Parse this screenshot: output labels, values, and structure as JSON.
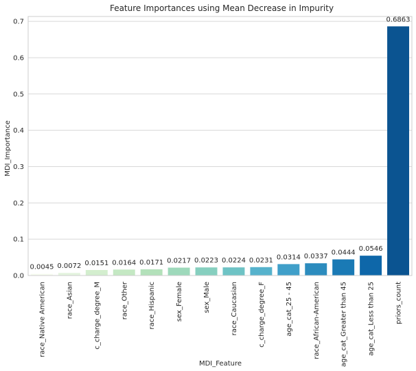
{
  "chart_data": {
    "type": "bar",
    "title": "Feature Importances using Mean Decrease in Impurity",
    "xlabel": "MDI_Feature",
    "ylabel": "MDI_Importance",
    "ylim": [
      0,
      0.7
    ],
    "yticks": [
      "0.0",
      "0.1",
      "0.2",
      "0.3",
      "0.4",
      "0.5",
      "0.6",
      "0.7"
    ],
    "grid": true,
    "categories": [
      "race_Native American",
      "race_Asian",
      "c_charge_degree_M",
      "race_Other",
      "race_Hispanic",
      "sex_Female",
      "sex_Male",
      "race_Caucasian",
      "c_charge_degree_F",
      "age_cat_25 - 45",
      "race_African-American",
      "age_cat_Greater than 45",
      "age_cat_Less than 25",
      "priors_count"
    ],
    "values": [
      0.0045,
      0.0072,
      0.0151,
      0.0164,
      0.0171,
      0.0217,
      0.0223,
      0.0224,
      0.0231,
      0.0314,
      0.0337,
      0.0444,
      0.0546,
      0.6863
    ],
    "value_labels": [
      "0.0045",
      "0.0072",
      "0.0151",
      "0.0164",
      "0.0171",
      "0.0217",
      "0.0223",
      "0.0224",
      "0.0231",
      "0.0314",
      "0.0337",
      "0.0444",
      "0.0546",
      "0.6863"
    ],
    "colors": [
      "#f7fcf0",
      "#e4f4df",
      "#d3eece",
      "#c4e8c3",
      "#b3e1ba",
      "#9ed9bb",
      "#86cfbf",
      "#6ec3c5",
      "#56b2cc",
      "#409fc9",
      "#2c8cbe",
      "#1a7ab5",
      "#0e67a9",
      "#0b5491"
    ]
  }
}
